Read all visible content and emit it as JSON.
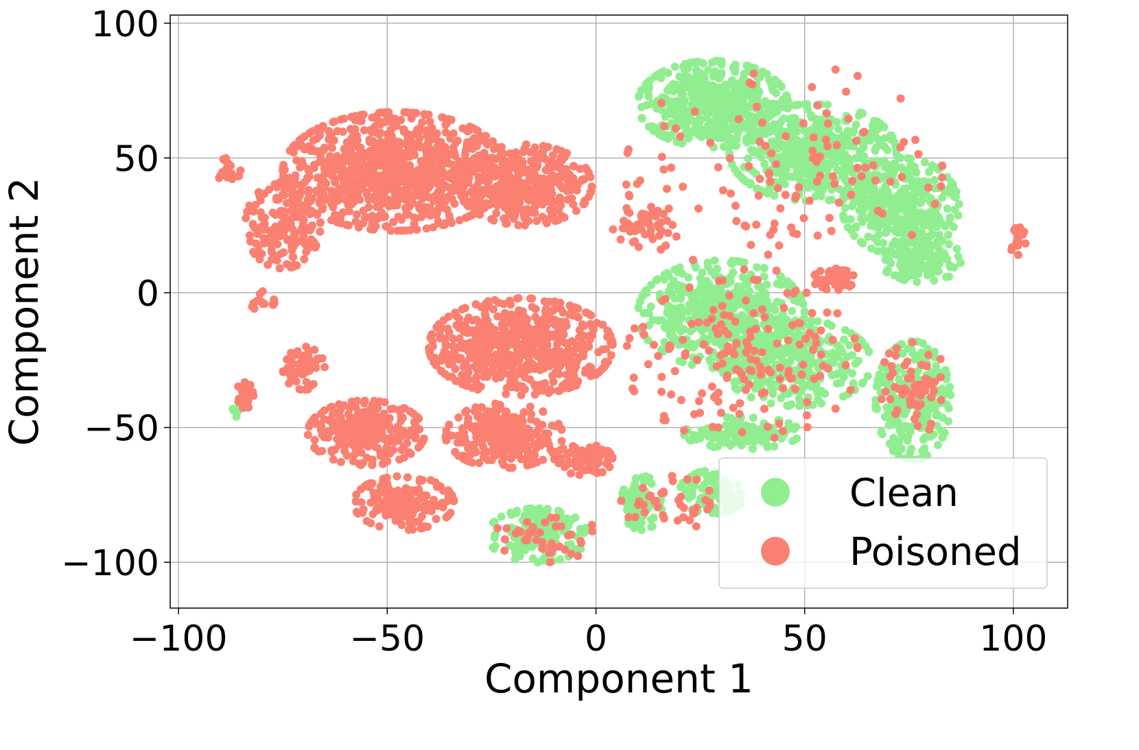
{
  "chart_data": {
    "type": "scatter",
    "xlabel": "Component 1",
    "ylabel": "Component 2",
    "xlim": [
      -102,
      113
    ],
    "ylim": [
      -117,
      103
    ],
    "xticks": [
      {
        "value": -100,
        "label": "−100"
      },
      {
        "value": -50,
        "label": "−50"
      },
      {
        "value": 0,
        "label": "0"
      },
      {
        "value": 50,
        "label": "50"
      },
      {
        "value": 100,
        "label": "100"
      }
    ],
    "yticks": [
      {
        "value": 100,
        "label": "100"
      },
      {
        "value": 50,
        "label": "50"
      },
      {
        "value": 0,
        "label": "0"
      },
      {
        "value": -50,
        "label": "−50"
      },
      {
        "value": -100,
        "label": "−100"
      }
    ],
    "grid": true,
    "legend_position": "bottom-right",
    "series": [
      {
        "name": "Clean",
        "color": "#90ee90",
        "clusters": [
          {
            "cx": 28,
            "cy": 70,
            "rx": 18,
            "ry": 16,
            "n": 520
          },
          {
            "cx": 52,
            "cy": 52,
            "rx": 20,
            "ry": 18,
            "n": 520
          },
          {
            "cx": 73,
            "cy": 32,
            "rx": 14,
            "ry": 18,
            "n": 360
          },
          {
            "cx": 78,
            "cy": 12,
            "rx": 10,
            "ry": 8,
            "n": 160
          },
          {
            "cx": 30,
            "cy": -8,
            "rx": 20,
            "ry": 20,
            "n": 520
          },
          {
            "cx": 48,
            "cy": -26,
            "rx": 18,
            "ry": 16,
            "n": 320
          },
          {
            "cx": 35,
            "cy": -52,
            "rx": 14,
            "ry": 6,
            "n": 120
          },
          {
            "cx": 76,
            "cy": -40,
            "rx": 9,
            "ry": 22,
            "n": 240
          },
          {
            "cx": 11,
            "cy": -78,
            "rx": 5,
            "ry": 10,
            "n": 80
          },
          {
            "cx": 28,
            "cy": -74,
            "rx": 8,
            "ry": 8,
            "n": 90
          },
          {
            "cx": -14,
            "cy": -90,
            "rx": 12,
            "ry": 10,
            "n": 150
          },
          {
            "cx": -86,
            "cy": -42,
            "rx": 2,
            "ry": 4,
            "n": 14
          }
        ]
      },
      {
        "name": "Poisoned",
        "color": "#fa8072",
        "clusters": [
          {
            "cx": -48,
            "cy": 45,
            "rx": 27,
            "ry": 22,
            "n": 900
          },
          {
            "cx": -17,
            "cy": 40,
            "rx": 16,
            "ry": 15,
            "n": 420
          },
          {
            "cx": -75,
            "cy": 25,
            "rx": 9,
            "ry": 16,
            "n": 160
          },
          {
            "cx": -88,
            "cy": 45,
            "rx": 3,
            "ry": 5,
            "n": 20
          },
          {
            "cx": -18,
            "cy": -20,
            "rx": 22,
            "ry": 18,
            "n": 620
          },
          {
            "cx": -55,
            "cy": -52,
            "rx": 14,
            "ry": 12,
            "n": 260
          },
          {
            "cx": -22,
            "cy": -53,
            "rx": 14,
            "ry": 12,
            "n": 260
          },
          {
            "cx": -3,
            "cy": -62,
            "rx": 7,
            "ry": 6,
            "n": 90
          },
          {
            "cx": -46,
            "cy": -78,
            "rx": 12,
            "ry": 10,
            "n": 190
          },
          {
            "cx": -70,
            "cy": -28,
            "rx": 5,
            "ry": 8,
            "n": 60
          },
          {
            "cx": -84,
            "cy": -37,
            "rx": 2,
            "ry": 6,
            "n": 24
          },
          {
            "cx": 57,
            "cy": 5,
            "rx": 5,
            "ry": 4,
            "n": 60
          },
          {
            "cx": 101,
            "cy": 20,
            "rx": 2,
            "ry": 6,
            "n": 16
          },
          {
            "cx": -80,
            "cy": -3,
            "rx": 3,
            "ry": 4,
            "n": 18
          },
          {
            "cx": 12,
            "cy": 25,
            "rx": 8,
            "ry": 10,
            "n": 50
          },
          {
            "cx": 45,
            "cy": 45,
            "rx": 38,
            "ry": 40,
            "n": 120
          },
          {
            "cx": 35,
            "cy": -25,
            "rx": 28,
            "ry": 30,
            "n": 160
          },
          {
            "cx": 76,
            "cy": -35,
            "rx": 8,
            "ry": 18,
            "n": 60
          },
          {
            "cx": 18,
            "cy": -78,
            "rx": 12,
            "ry": 10,
            "n": 40
          },
          {
            "cx": -12,
            "cy": -90,
            "rx": 12,
            "ry": 10,
            "n": 40
          }
        ]
      }
    ]
  }
}
